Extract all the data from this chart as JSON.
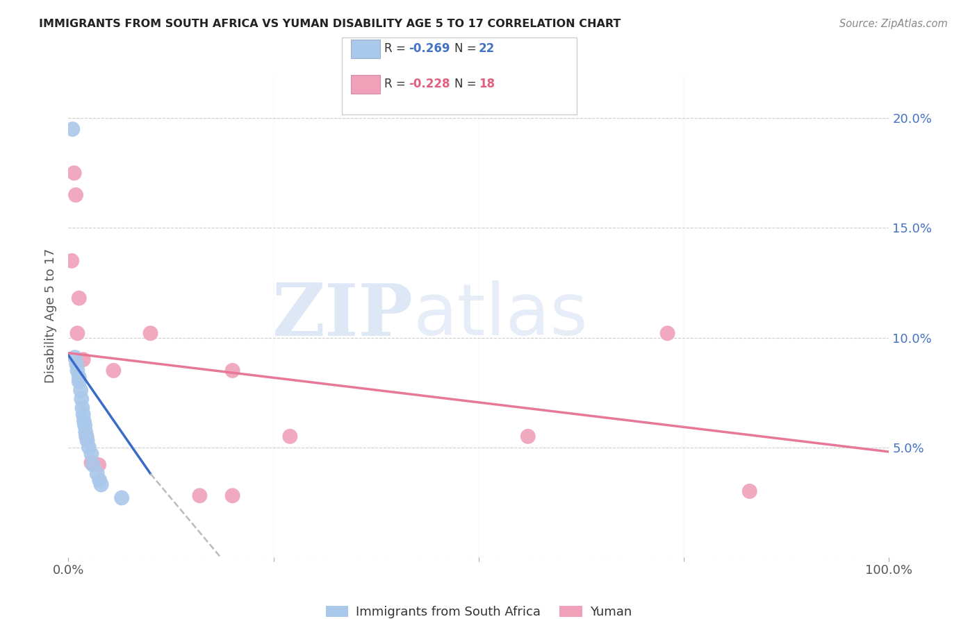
{
  "title": "IMMIGRANTS FROM SOUTH AFRICA VS YUMAN DISABILITY AGE 5 TO 17 CORRELATION CHART",
  "source": "Source: ZipAtlas.com",
  "ylabel": "Disability Age 5 to 17",
  "xlim": [
    0.0,
    1.0
  ],
  "ylim": [
    0.0,
    0.22
  ],
  "yticks": [
    0.0,
    0.05,
    0.1,
    0.15,
    0.2
  ],
  "ytick_labels": [
    "",
    "5.0%",
    "10.0%",
    "15.0%",
    "20.0%"
  ],
  "xticks": [
    0.0,
    0.25,
    0.5,
    0.75,
    1.0
  ],
  "xtick_labels": [
    "0.0%",
    "",
    "",
    "",
    "100.0%"
  ],
  "watermark_ZIP": "ZIP",
  "watermark_atlas": "atlas",
  "blue_series": {
    "label": "Immigrants from South Africa",
    "R": "-0.269",
    "N": "22",
    "color": "#aac8ea",
    "x": [
      0.005,
      0.008,
      0.01,
      0.011,
      0.013,
      0.013,
      0.015,
      0.016,
      0.017,
      0.018,
      0.019,
      0.02,
      0.021,
      0.022,
      0.023,
      0.025,
      0.028,
      0.03,
      0.035,
      0.038,
      0.04,
      0.065
    ],
    "y": [
      0.195,
      0.091,
      0.088,
      0.085,
      0.082,
      0.08,
      0.076,
      0.072,
      0.068,
      0.065,
      0.062,
      0.06,
      0.057,
      0.055,
      0.053,
      0.05,
      0.047,
      0.042,
      0.038,
      0.035,
      0.033,
      0.027
    ]
  },
  "pink_series": {
    "label": "Yuman",
    "R": "-0.228",
    "N": "18",
    "color": "#f0a0b8",
    "x": [
      0.004,
      0.007,
      0.009,
      0.011,
      0.013,
      0.018,
      0.022,
      0.028,
      0.037,
      0.055,
      0.1,
      0.16,
      0.2,
      0.27,
      0.56,
      0.73,
      0.83,
      0.2
    ],
    "y": [
      0.135,
      0.175,
      0.165,
      0.102,
      0.118,
      0.09,
      0.055,
      0.043,
      0.042,
      0.085,
      0.102,
      0.028,
      0.028,
      0.055,
      0.055,
      0.102,
      0.03,
      0.085
    ]
  },
  "blue_line_solid": {
    "x": [
      0.0,
      0.1
    ],
    "y": [
      0.092,
      0.038
    ],
    "color": "#3a6bc8",
    "linewidth": 2.5
  },
  "blue_line_dashed": {
    "x": [
      0.1,
      0.32
    ],
    "y": [
      0.038,
      -0.06
    ],
    "color": "#bbbbbb",
    "linewidth": 1.8
  },
  "pink_line": {
    "x": [
      0.0,
      1.0
    ],
    "y": [
      0.093,
      0.048
    ],
    "color": "#e87898",
    "linewidth": 2.5
  },
  "legend_blue_R": "-0.269",
  "legend_blue_N": "22",
  "legend_pink_R": "-0.228",
  "legend_pink_N": "18",
  "bg_color": "#ffffff",
  "grid_color": "#cccccc",
  "title_color": "#222222",
  "axis_label_color": "#555555",
  "right_tick_color": "#4472c4",
  "R_color_blue": "#4472c4",
  "R_color_pink": "#e06080",
  "N_color_blue": "#4472c4",
  "N_color_pink": "#e06080"
}
